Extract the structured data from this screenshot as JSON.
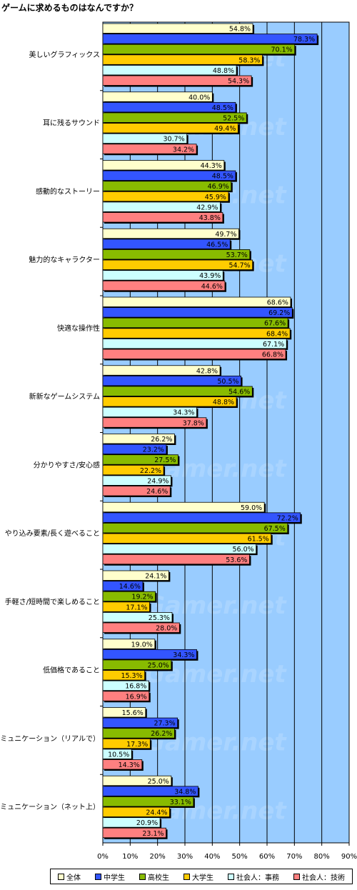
{
  "chart_data": {
    "type": "bar",
    "orientation": "horizontal",
    "title": "ゲームに求めるものはなんですか？",
    "xlim": [
      0,
      90
    ],
    "x_ticks": [
      "0%",
      "10%",
      "20%",
      "30%",
      "40%",
      "50%",
      "60%",
      "70%",
      "80%",
      "90%"
    ],
    "grid": true,
    "legend_position": "bottom",
    "watermark": "4Gamer.net",
    "categories": [
      "美しいグラフィックス",
      "耳に残るサウンド",
      "感動的なストーリー",
      "魅力的なキャラクター",
      "快適な操作性",
      "新新なゲームシステム",
      "分かりやすさ/安心感",
      "やり込み要素/長く遊べること",
      "手軽さ/短時間で楽しめること",
      "低価格であること",
      "コミュニケーション（リアルで）",
      "コミュニケーション（ネット上）"
    ],
    "series": [
      {
        "name": "全体",
        "color": "#ffffcc",
        "values": [
          54.8,
          40.0,
          44.3,
          49.7,
          68.6,
          42.8,
          26.2,
          59.0,
          24.1,
          19.0,
          15.6,
          25.0
        ]
      },
      {
        "name": "中学生",
        "color": "#3355ff",
        "values": [
          78.3,
          48.5,
          48.5,
          46.5,
          69.2,
          50.5,
          23.2,
          72.2,
          14.6,
          34.3,
          27.3,
          34.8
        ]
      },
      {
        "name": "高校生",
        "color": "#88bb00",
        "values": [
          70.1,
          52.5,
          46.9,
          53.7,
          67.6,
          54.6,
          27.5,
          67.5,
          19.2,
          25.0,
          26.2,
          33.1
        ]
      },
      {
        "name": "大学生",
        "color": "#ffcc00",
        "values": [
          58.3,
          49.4,
          45.9,
          54.7,
          68.4,
          48.8,
          22.2,
          61.5,
          17.1,
          15.3,
          17.3,
          24.4
        ]
      },
      {
        "name": "社会人：事務",
        "color": "#ccffff",
        "values": [
          48.8,
          30.7,
          42.9,
          43.9,
          67.1,
          34.3,
          24.9,
          56.0,
          25.3,
          16.8,
          10.5,
          20.9
        ]
      },
      {
        "name": "社会人：技術",
        "color": "#ff8080",
        "values": [
          54.3,
          34.2,
          43.8,
          44.6,
          66.8,
          37.8,
          24.6,
          53.6,
          28.0,
          16.9,
          14.3,
          23.1
        ]
      }
    ],
    "plot_background": "#99ccff"
  }
}
